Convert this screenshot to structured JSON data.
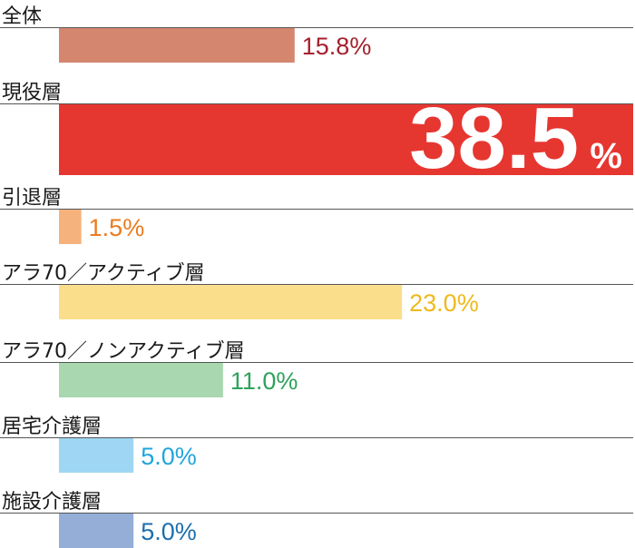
{
  "chart_data": {
    "type": "bar",
    "orientation": "horizontal",
    "title": "",
    "xlabel": "",
    "ylabel": "",
    "xlim": [
      0,
      38.5
    ],
    "grid": false,
    "highlight_index": 1,
    "categories": [
      "全体",
      "現役層",
      "引退層",
      "アラ70／アクティブ層",
      "アラ70／ノンアクティブ層",
      "居宅介護層",
      "施設介護層"
    ],
    "values": [
      15.8,
      38.5,
      1.5,
      23.0,
      11.0,
      5.0,
      5.0
    ],
    "value_labels": [
      "15.8%",
      "38.5",
      "1.5%",
      "23.0%",
      "11.0%",
      "5.0%",
      "5.0%"
    ],
    "big_label_unit": "%",
    "bar_colors": [
      "#d4866f",
      "#e63630",
      "#f5b27c",
      "#fbde8c",
      "#a8d7b0",
      "#9ed6f3",
      "#94aed8"
    ],
    "label_colors": [
      "#a5202e",
      "#ffffff",
      "#ec7b1e",
      "#efb91c",
      "#2fa25b",
      "#21a5dc",
      "#1c6eac"
    ]
  }
}
